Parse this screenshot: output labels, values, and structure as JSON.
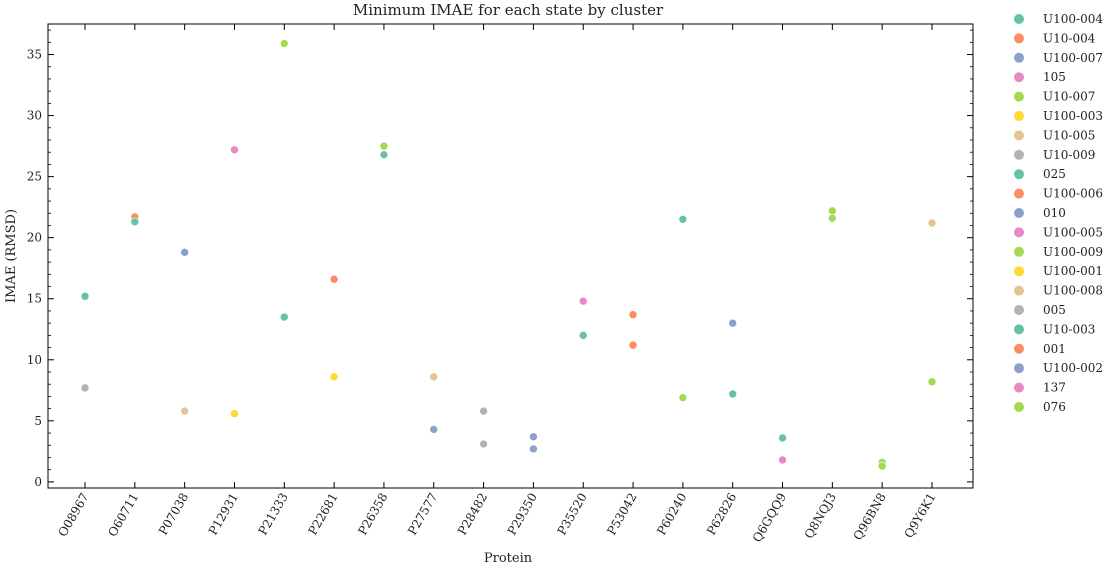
{
  "chart_data": {
    "type": "scatter",
    "title": "Minimum IMAE for each state by cluster",
    "xlabel": "Protein",
    "ylabel": "IMAE (RMSD)",
    "ylim": [
      -0.5,
      37.5
    ],
    "yticks": [
      0,
      5,
      10,
      15,
      20,
      25,
      30,
      35
    ],
    "categories": [
      "O08967",
      "O60711",
      "P07038",
      "P12931",
      "P21333",
      "P22681",
      "P26358",
      "P27577",
      "P28482",
      "P29350",
      "P35520",
      "P53042",
      "P60240",
      "P62826",
      "Q6GQQ9",
      "Q8NQJ3",
      "Q96BN8",
      "Q9Y6K1"
    ],
    "legend_position": "outside-right",
    "grid": false,
    "series": [
      {
        "name": "U100-004",
        "color": "#66c2a5",
        "points": [
          {
            "x": "O08967",
            "y": 15.2
          }
        ]
      },
      {
        "name": "U10-004",
        "color": "#fc8d62",
        "points": [
          {
            "x": "O60711",
            "y": 21.7
          }
        ]
      },
      {
        "name": "U100-007",
        "color": "#8da0cb",
        "points": [
          {
            "x": "P07038",
            "y": 18.8
          }
        ]
      },
      {
        "name": "105",
        "color": "#e78ac3",
        "points": [
          {
            "x": "P12931",
            "y": 27.2
          }
        ]
      },
      {
        "name": "U10-007",
        "color": "#a6d854",
        "points": [
          {
            "x": "P21333",
            "y": 35.9
          }
        ]
      },
      {
        "name": "U100-003",
        "color": "#ffd92f",
        "points": [
          {
            "x": "P12931",
            "y": 5.6
          }
        ]
      },
      {
        "name": "U10-005",
        "color": "#e5c494",
        "points": [
          {
            "x": "P07038",
            "y": 5.8
          }
        ]
      },
      {
        "name": "U10-009",
        "color": "#b3b3b3",
        "points": [
          {
            "x": "O08967",
            "y": 7.7
          }
        ]
      },
      {
        "name": "025",
        "color": "#66c2a5",
        "points": [
          {
            "x": "O60711",
            "y": 21.3
          },
          {
            "x": "P21333",
            "y": 13.5
          },
          {
            "x": "P26358",
            "y": 26.8
          }
        ]
      },
      {
        "name": "U100-006",
        "color": "#fc8d62",
        "points": [
          {
            "x": "P22681",
            "y": 16.6
          }
        ]
      },
      {
        "name": "010",
        "color": "#8da0cb",
        "points": [
          {
            "x": "P27577",
            "y": 4.3
          }
        ]
      },
      {
        "name": "U100-005",
        "color": "#e78ac3",
        "points": [
          {
            "x": "P35520",
            "y": 14.8
          }
        ]
      },
      {
        "name": "U100-009",
        "color": "#a6d854",
        "points": [
          {
            "x": "P26358",
            "y": 27.5
          }
        ]
      },
      {
        "name": "U100-001",
        "color": "#ffd92f",
        "points": [
          {
            "x": "P22681",
            "y": 8.6
          }
        ]
      },
      {
        "name": "U100-008",
        "color": "#e5c494",
        "points": [
          {
            "x": "P27577",
            "y": 8.6
          },
          {
            "x": "Q9Y6K1",
            "y": 21.2
          }
        ]
      },
      {
        "name": "005",
        "color": "#b3b3b3",
        "points": [
          {
            "x": "P28482",
            "y": 5.8
          },
          {
            "x": "P28482",
            "y": 3.1
          }
        ]
      },
      {
        "name": "U10-003",
        "color": "#66c2a5",
        "points": [
          {
            "x": "P35520",
            "y": 12.0
          },
          {
            "x": "P60240",
            "y": 21.5
          },
          {
            "x": "P62826",
            "y": 7.2
          },
          {
            "x": "Q6GQQ9",
            "y": 3.6
          }
        ]
      },
      {
        "name": "001",
        "color": "#fc8d62",
        "points": [
          {
            "x": "P53042",
            "y": 13.7
          },
          {
            "x": "P53042",
            "y": 11.2
          }
        ]
      },
      {
        "name": "U100-002",
        "color": "#8da0cb",
        "points": [
          {
            "x": "P29350",
            "y": 3.7
          },
          {
            "x": "P29350",
            "y": 2.7
          },
          {
            "x": "P62826",
            "y": 13.0
          }
        ]
      },
      {
        "name": "137",
        "color": "#e78ac3",
        "points": [
          {
            "x": "Q6GQQ9",
            "y": 1.8
          }
        ]
      },
      {
        "name": "076",
        "color": "#a6d854",
        "points": [
          {
            "x": "P60240",
            "y": 6.9
          },
          {
            "x": "Q8NQJ3",
            "y": 22.2
          },
          {
            "x": "Q8NQJ3",
            "y": 21.6
          },
          {
            "x": "Q96BN8",
            "y": 1.6
          },
          {
            "x": "Q96BN8",
            "y": 1.3
          },
          {
            "x": "Q9Y6K1",
            "y": 8.2
          }
        ]
      }
    ]
  }
}
